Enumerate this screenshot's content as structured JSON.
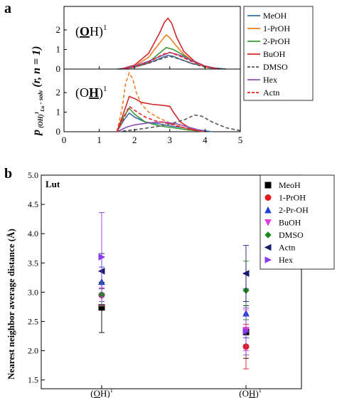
{
  "panel_a": {
    "label": "a",
    "top_annotation": "(OH)¹",
    "bottom_annotation": "(OH)¹",
    "ylabel": "p (OH)¹Lu - solv (r, n = 1)"
  },
  "panel_b": {
    "label": "b",
    "annotation": "Lut",
    "ylabel": "Nearest neighbor average distance (Å)"
  },
  "colors": {
    "MeOH": "#3a6ea5",
    "1-PrOH": "#f07e26",
    "2-PrOH": "#3a9a3a",
    "BuOH": "#d62728",
    "DMSO": "#555555",
    "Hex": "#8c50b4",
    "Actn": "#e8242a"
  },
  "chart_data": [
    {
      "type": "line",
      "title": "",
      "annotation": "(OH)¹",
      "xlabel": "",
      "ylabel": "",
      "xlim": [
        0,
        5
      ],
      "ylim": [
        0,
        3.2
      ],
      "xticks": [
        "0",
        "1",
        "2",
        "3",
        "4",
        "5"
      ],
      "yticks": [
        "0",
        "1",
        "2"
      ],
      "legend": "right",
      "series": [
        {
          "name": "MeOH",
          "style": "solid",
          "x": [
            1.5,
            1.8,
            2.0,
            2.3,
            2.6,
            2.8,
            2.95,
            3.1,
            3.3,
            3.6,
            4.0,
            4.3,
            4.6
          ],
          "y": [
            0,
            0.05,
            0.1,
            0.25,
            0.45,
            0.6,
            0.7,
            0.65,
            0.5,
            0.3,
            0.15,
            0.05,
            0
          ]
        },
        {
          "name": "1-PrOH",
          "style": "solid",
          "x": [
            1.6,
            2.0,
            2.4,
            2.7,
            2.9,
            3.0,
            3.2,
            3.4,
            3.7,
            4.0,
            4.4
          ],
          "y": [
            0,
            0.15,
            0.6,
            1.3,
            1.75,
            1.6,
            1.15,
            0.75,
            0.35,
            0.1,
            0
          ]
        },
        {
          "name": "2-PrOH",
          "style": "solid",
          "x": [
            1.6,
            2.0,
            2.4,
            2.7,
            2.9,
            3.1,
            3.3,
            3.6,
            4.0,
            4.4
          ],
          "y": [
            0,
            0.1,
            0.35,
            0.8,
            1.1,
            1.0,
            0.8,
            0.45,
            0.15,
            0
          ]
        },
        {
          "name": "BuOH",
          "style": "solid",
          "x": [
            1.6,
            2.0,
            2.4,
            2.7,
            2.85,
            2.95,
            3.05,
            3.2,
            3.4,
            3.7,
            4.0,
            4.4
          ],
          "y": [
            0,
            0.2,
            0.8,
            1.8,
            2.4,
            2.6,
            2.35,
            1.6,
            0.9,
            0.4,
            0.15,
            0
          ]
        },
        {
          "name": "DMSO",
          "style": "dashed",
          "x": [
            1.6,
            2.0,
            2.4,
            2.8,
            3.0,
            3.3,
            3.6,
            4.0,
            4.4
          ],
          "y": [
            0,
            0.1,
            0.3,
            0.55,
            0.65,
            0.5,
            0.3,
            0.1,
            0
          ]
        },
        {
          "name": "Hex",
          "style": "solid",
          "x": [
            1.6,
            2.0,
            2.4,
            2.8,
            3.0,
            3.3,
            3.6,
            4.0,
            4.4
          ],
          "y": [
            0,
            0.15,
            0.4,
            0.7,
            0.85,
            0.7,
            0.45,
            0.15,
            0
          ]
        },
        {
          "name": "Actn",
          "style": "dashed",
          "x": [
            1.6,
            2.0,
            2.4,
            2.8,
            3.0,
            3.3,
            3.6,
            4.0,
            4.4
          ],
          "y": [
            0,
            0.1,
            0.35,
            0.75,
            0.85,
            0.65,
            0.4,
            0.15,
            0
          ]
        }
      ]
    },
    {
      "type": "line",
      "title": "",
      "annotation": "(OH)¹",
      "xlabel": "",
      "ylabel": "",
      "xlim": [
        0,
        5
      ],
      "ylim": [
        0,
        3.2
      ],
      "xticks": [
        "0",
        "1",
        "2",
        "3",
        "4",
        "5"
      ],
      "yticks": [
        "0",
        "1",
        "2"
      ],
      "series": [
        {
          "name": "MeOH",
          "style": "solid",
          "x": [
            1.5,
            1.7,
            1.85,
            2.0,
            2.3,
            2.7,
            3.0,
            3.4,
            3.8,
            4.2
          ],
          "y": [
            0,
            0.6,
            0.95,
            0.75,
            0.5,
            0.4,
            0.3,
            0.2,
            0.1,
            0
          ]
        },
        {
          "name": "1-PrOH",
          "style": "dashed",
          "x": [
            1.5,
            1.65,
            1.75,
            1.85,
            1.95,
            2.05,
            2.2,
            2.4,
            2.7,
            3.0,
            3.4,
            4.0
          ],
          "y": [
            0,
            1.2,
            2.5,
            3.0,
            2.7,
            2.0,
            1.4,
            1.0,
            0.7,
            0.45,
            0.2,
            0
          ]
        },
        {
          "name": "2-PrOH",
          "style": "solid",
          "x": [
            1.5,
            1.7,
            1.85,
            2.0,
            2.3,
            2.7,
            3.1,
            3.5,
            4.0
          ],
          "y": [
            0,
            0.8,
            1.2,
            0.9,
            0.5,
            0.3,
            0.2,
            0.1,
            0
          ]
        },
        {
          "name": "BuOH",
          "style": "solid",
          "x": [
            1.5,
            1.7,
            1.85,
            2.0,
            2.2,
            2.5,
            2.8,
            3.0,
            3.1,
            3.3,
            3.6,
            4.0
          ],
          "y": [
            0,
            1.0,
            1.8,
            1.7,
            1.5,
            1.4,
            1.35,
            1.3,
            1.0,
            0.5,
            0.15,
            0
          ]
        },
        {
          "name": "DMSO",
          "style": "dashed",
          "x": [
            1.5,
            2.0,
            2.6,
            3.0,
            3.4,
            3.7,
            3.9,
            4.2,
            4.6,
            5.0
          ],
          "y": [
            0,
            0.1,
            0.25,
            0.4,
            0.6,
            0.85,
            0.8,
            0.5,
            0.2,
            0.05
          ]
        },
        {
          "name": "Hex",
          "style": "solid",
          "x": [
            1.5,
            1.8,
            2.0,
            2.4,
            2.8,
            3.2,
            3.6,
            4.0
          ],
          "y": [
            0,
            0.25,
            0.35,
            0.45,
            0.5,
            0.4,
            0.2,
            0
          ]
        },
        {
          "name": "Actn",
          "style": "dashed",
          "x": [
            1.5,
            1.7,
            1.85,
            2.0,
            2.3,
            2.6,
            3.0,
            3.3,
            3.6,
            4.0
          ],
          "y": [
            0,
            0.7,
            1.3,
            1.1,
            0.75,
            0.55,
            0.4,
            0.25,
            0.1,
            0
          ]
        }
      ]
    },
    {
      "type": "scatter",
      "title": "",
      "annotation": "Lut",
      "xlabel": "",
      "ylabel": "Nearest neighbor average distance (Å)",
      "categories": [
        "(OH)¹",
        "(OH)¹"
      ],
      "ylim": [
        1.35,
        5.0
      ],
      "yticks": [
        "1.5",
        "2.0",
        "2.5",
        "3.0",
        "3.5",
        "4.0",
        "4.5",
        "5.0"
      ],
      "legend": "right",
      "series": [
        {
          "name": "MeoH",
          "marker": "square",
          "values": [
            2.74,
            2.32
          ],
          "errors": [
            0.43,
            0.45
          ]
        },
        {
          "name": "1-PrOH",
          "marker": "circle",
          "values": [
            2.95,
            2.07
          ],
          "errors": [
            0.18,
            0.38
          ]
        },
        {
          "name": "2-Pr-OH",
          "marker": "triangle-up",
          "values": [
            3.18,
            2.64
          ],
          "errors": [
            0.25,
            0.42
          ]
        },
        {
          "name": "BuOH",
          "marker": "triangle-down",
          "values": [
            2.93,
            2.35
          ],
          "errors": [
            0.15,
            0.35
          ]
        },
        {
          "name": "DMSO",
          "marker": "diamond",
          "values": [
            2.96,
            3.03
          ],
          "errors": [
            0.2,
            0.5
          ]
        },
        {
          "name": "Actn",
          "marker": "triangle-left",
          "values": [
            3.36,
            3.32
          ],
          "errors": [
            0.3,
            0.48
          ]
        },
        {
          "name": "Hex",
          "marker": "triangle-right",
          "values": [
            3.6,
            2.33
          ],
          "errors": [
            0.76,
            0.4
          ]
        }
      ]
    }
  ]
}
